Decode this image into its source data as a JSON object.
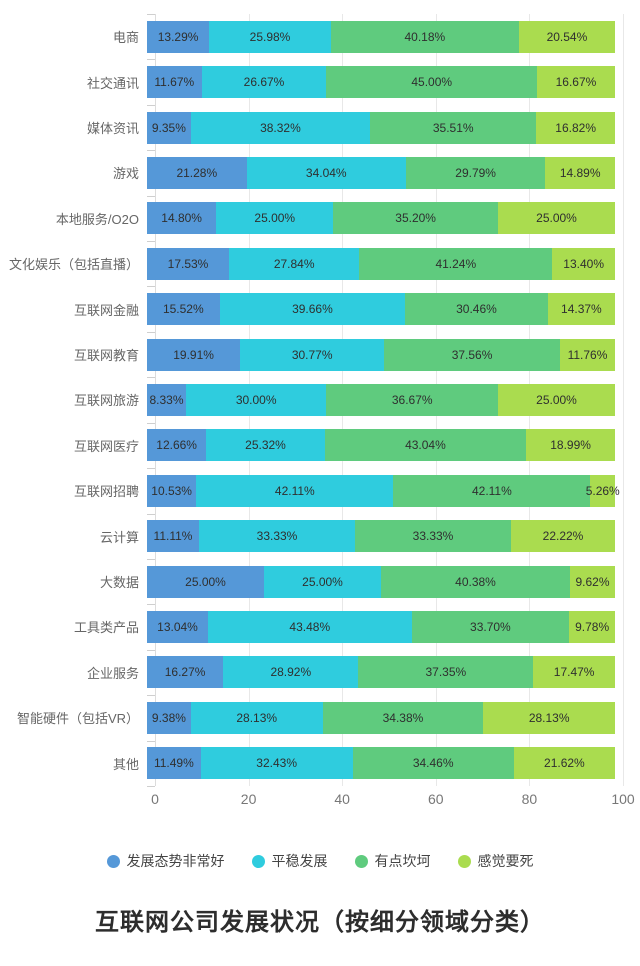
{
  "chart_data": {
    "type": "bar",
    "variant": "horizontal-stacked",
    "title": "互联网公司发展状况（按细分领域分类）",
    "xlabel": "",
    "ylabel": "",
    "xlim": [
      0,
      100
    ],
    "x_ticks": [
      0,
      20,
      40,
      60,
      80,
      100
    ],
    "grid": true,
    "legend_position": "bottom",
    "value_suffix": "%",
    "categories": [
      "电商",
      "社交通讯",
      "媒体资讯",
      "游戏",
      "本地服务/O2O",
      "文化娱乐（包括直播）",
      "互联网金融",
      "互联网教育",
      "互联网旅游",
      "互联网医疗",
      "互联网招聘",
      "云计算",
      "大数据",
      "工具类产品",
      "企业服务",
      "智能硬件（包括VR）",
      "其他"
    ],
    "series": [
      {
        "name": "发展态势非常好",
        "color": "#5598d8",
        "values": [
          13.29,
          11.67,
          9.35,
          21.28,
          14.8,
          17.53,
          15.52,
          19.91,
          8.33,
          12.66,
          10.53,
          11.11,
          25.0,
          13.04,
          16.27,
          9.38,
          11.49
        ]
      },
      {
        "name": "平稳发展",
        "color": "#2fccde",
        "values": [
          25.98,
          26.67,
          38.32,
          34.04,
          25.0,
          27.84,
          39.66,
          30.77,
          30.0,
          25.32,
          42.11,
          33.33,
          25.0,
          43.48,
          28.92,
          28.13,
          32.43
        ]
      },
      {
        "name": "有点坎坷",
        "color": "#5fcb7e",
        "values": [
          40.18,
          45.0,
          35.51,
          29.79,
          35.2,
          41.24,
          30.46,
          37.56,
          36.67,
          43.04,
          42.11,
          33.33,
          40.38,
          33.7,
          37.35,
          34.38,
          34.46
        ]
      },
      {
        "name": "感觉要死",
        "color": "#aadc4f",
        "values": [
          20.54,
          16.67,
          16.82,
          14.89,
          25.0,
          13.4,
          14.37,
          11.76,
          25.0,
          18.99,
          5.26,
          22.22,
          9.62,
          9.78,
          17.47,
          28.13,
          21.62
        ]
      }
    ]
  },
  "colors": {
    "background": "#ffffff",
    "grid_line": "#e8e8e8",
    "axis_line": "#dcdcdc",
    "axis_tick": "#cfcfcf",
    "bar_label_text": "#2f2f2f",
    "category_label_text": "#666666",
    "x_tick_label_text": "#777777",
    "legend_text": "#444444",
    "title_text": "#2d2d2d"
  }
}
